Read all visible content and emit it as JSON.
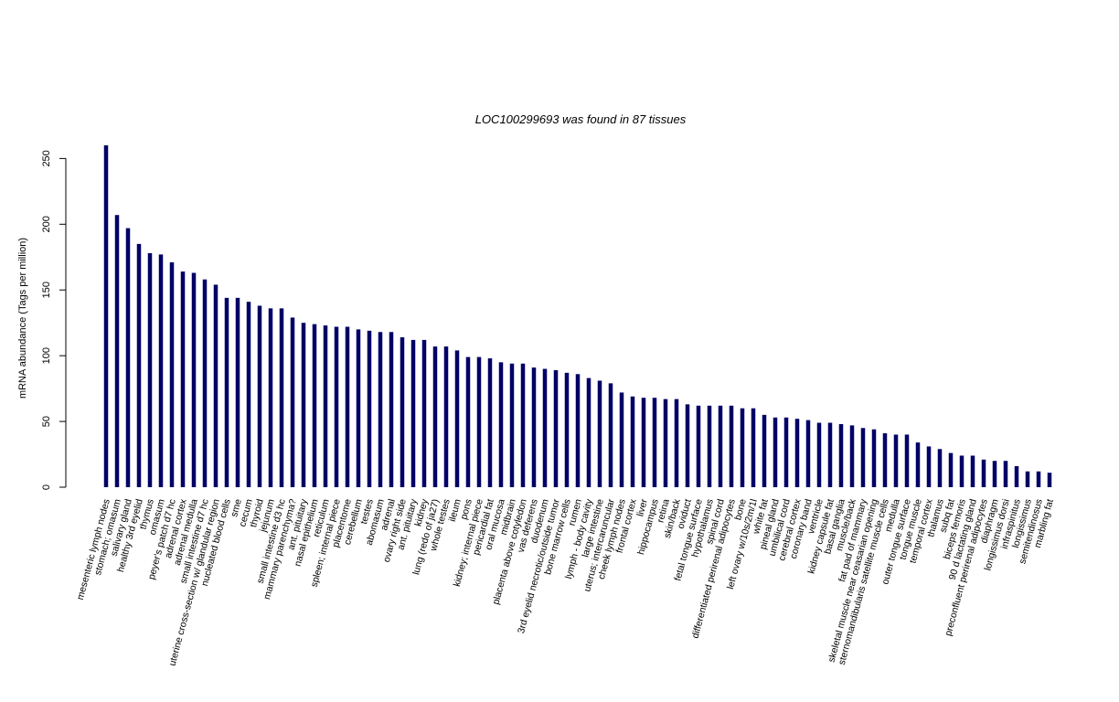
{
  "chart_data": {
    "type": "bar",
    "title": "LOC100299693  was found in  87  tissues",
    "ylabel": "mRNA abundance (Tags per million)",
    "xlabel": "",
    "ylim": [
      0,
      260
    ],
    "yticks": [
      0,
      50,
      100,
      150,
      200,
      250
    ],
    "bar_color": "#000066",
    "grid": false,
    "categories": [
      "mesenteric lymph nodes",
      "stomach; omasum",
      "salivary gland",
      "healthy 3rd eyelid",
      "thymus",
      "omasum",
      "peyer's patch d7 hc",
      "adrenal cortex",
      "adrenal medulla",
      "small intestine d7 hc",
      "uterine cross-section w/ glandular region",
      "nucleated blood cells",
      "sme",
      "cecum",
      "thyroid",
      "jejunum",
      "small intestine d3 hc",
      "mammary parenchyma?",
      "ant. pituitary",
      "nasal epithelium",
      "reticulum",
      "spleen; internal piece",
      "placentome",
      "cerebellum",
      "testes",
      "abomasum",
      "adrenal",
      "ovary right side",
      "ant. pituitary",
      "kidney",
      "lung (redo of ja27)",
      "whole testes",
      "ileum",
      "pons",
      "kidney; internal piece",
      "pericardial fat",
      "oral mucosa",
      "midbrain",
      "placenta above cotyledon",
      "vas deferens",
      "duodenum",
      "3rd eyelid necrotic/outside tumor",
      "bone marrow cells",
      "rumen",
      "lymph - body cavity",
      "large intestine",
      "uterus; intercaruncular",
      "cheek lymph nodes",
      "frontal cortex",
      "liver",
      "hippocampus",
      "retina",
      "skin/back",
      "oviduct",
      "fetal tongue surface",
      "hypothalamus",
      "spinal cord",
      "differentiated perirenal adipocytes",
      "bone",
      "left ovary w/10s/2m/1l",
      "white fat",
      "pineal gland",
      "umbilical cord",
      "cerebral cortex",
      "coronary band",
      "ventricle",
      "kidney capsule fat",
      "basal ganglia",
      "muscle/back",
      "fat pad of mammary",
      "skeletal muscle near ceasarian opening",
      "sternomandibularis satellite muscle cells",
      "medulla",
      "outer tongue surface",
      "tongue muscle",
      "temporal cortex",
      "thalamus",
      "subq fat",
      "biceps femoris",
      "90 d lactating gland",
      "preconfluent perirenal adipocytes",
      "diaphragm",
      "longissimus dorsi",
      "infraspinitus",
      "longissimus",
      "semitendinosus",
      "marbling fat"
    ],
    "values": [
      260,
      207,
      197,
      185,
      178,
      177,
      171,
      164,
      163,
      158,
      154,
      144,
      144,
      141,
      138,
      136,
      136,
      129,
      125,
      124,
      123,
      122,
      122,
      120,
      119,
      118,
      118,
      114,
      112,
      112,
      107,
      107,
      104,
      99,
      99,
      98,
      95,
      94,
      94,
      91,
      90,
      89,
      87,
      86,
      83,
      81,
      79,
      72,
      69,
      68,
      68,
      67,
      67,
      63,
      62,
      62,
      62,
      62,
      60,
      60,
      55,
      53,
      53,
      52,
      51,
      49,
      49,
      48,
      47,
      45,
      44,
      41,
      40,
      40,
      34,
      31,
      29,
      26,
      24,
      24,
      21,
      20,
      20,
      16,
      12,
      12,
      11
    ]
  }
}
